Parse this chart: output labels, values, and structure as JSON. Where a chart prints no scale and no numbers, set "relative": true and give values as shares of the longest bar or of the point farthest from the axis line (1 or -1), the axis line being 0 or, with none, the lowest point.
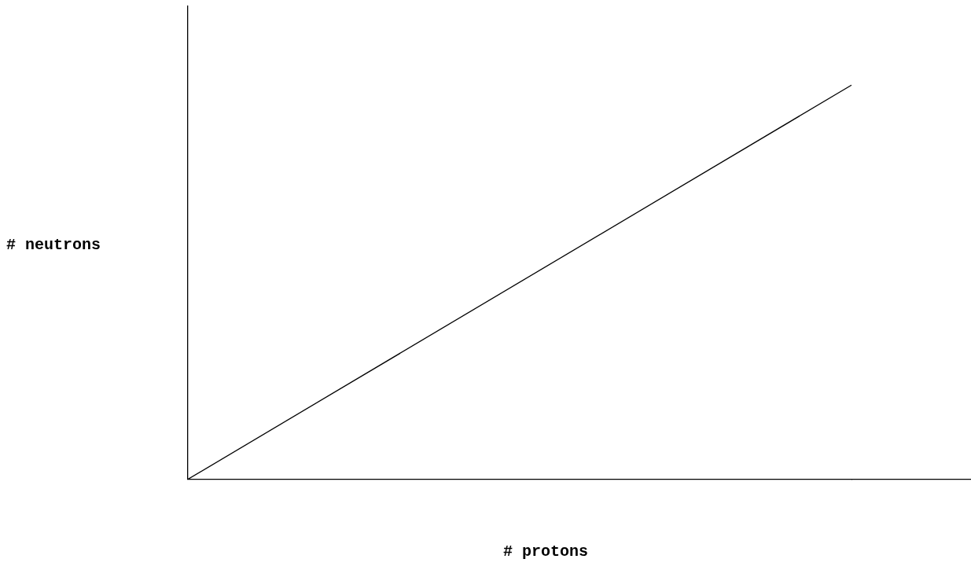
{
  "chart_data": {
    "type": "line",
    "relative": true,
    "xlabel": "# protons",
    "ylabel": "# neutrons",
    "categories": [
      null,
      null
    ],
    "series": [
      {
        "color": "#000000",
        "values": [
          0,
          1
        ]
      }
    ],
    "marker": "none",
    "line_style": "solid",
    "grid": false,
    "legend": false
  }
}
